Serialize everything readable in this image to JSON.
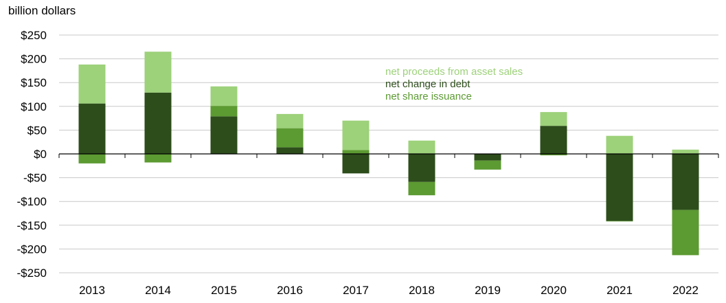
{
  "chart_data": {
    "type": "bar",
    "stacked": true,
    "title": "",
    "ylabel": "billion dollars",
    "xlabel": "",
    "ylim": [
      -250,
      250
    ],
    "ytick_labels": [
      "$250",
      "$200",
      "$150",
      "$100",
      "$50",
      "$0",
      "-$50",
      "-$100",
      "-$150",
      "-$200",
      "-$250"
    ],
    "categories": [
      "2013",
      "2014",
      "2015",
      "2016",
      "2017",
      "2018",
      "2019",
      "2020",
      "2021",
      "2022"
    ],
    "series": [
      {
        "name": "net change in debt",
        "color": "#2d4d1b",
        "values": [
          106,
          129,
          79,
          14,
          -41,
          -59,
          -14,
          59,
          -141,
          -118
        ]
      },
      {
        "name": "net share issuance",
        "color": "#5c9a32",
        "values": [
          -20,
          -18,
          22,
          40,
          8,
          -28,
          -19,
          -3,
          -1,
          -95
        ]
      },
      {
        "name": "net proceeds from asset sales",
        "color": "#9dd17a",
        "values": [
          82,
          86,
          41,
          30,
          62,
          28,
          0,
          29,
          38,
          9
        ]
      }
    ],
    "legend": {
      "position": "center-top",
      "entries": [
        {
          "label": "net proceeds from asset sales",
          "color": "#9dd17a"
        },
        {
          "label": "net change in debt",
          "color": "#2d4d1b"
        },
        {
          "label": "net share issuance",
          "color": "#5c9a32"
        }
      ]
    }
  }
}
